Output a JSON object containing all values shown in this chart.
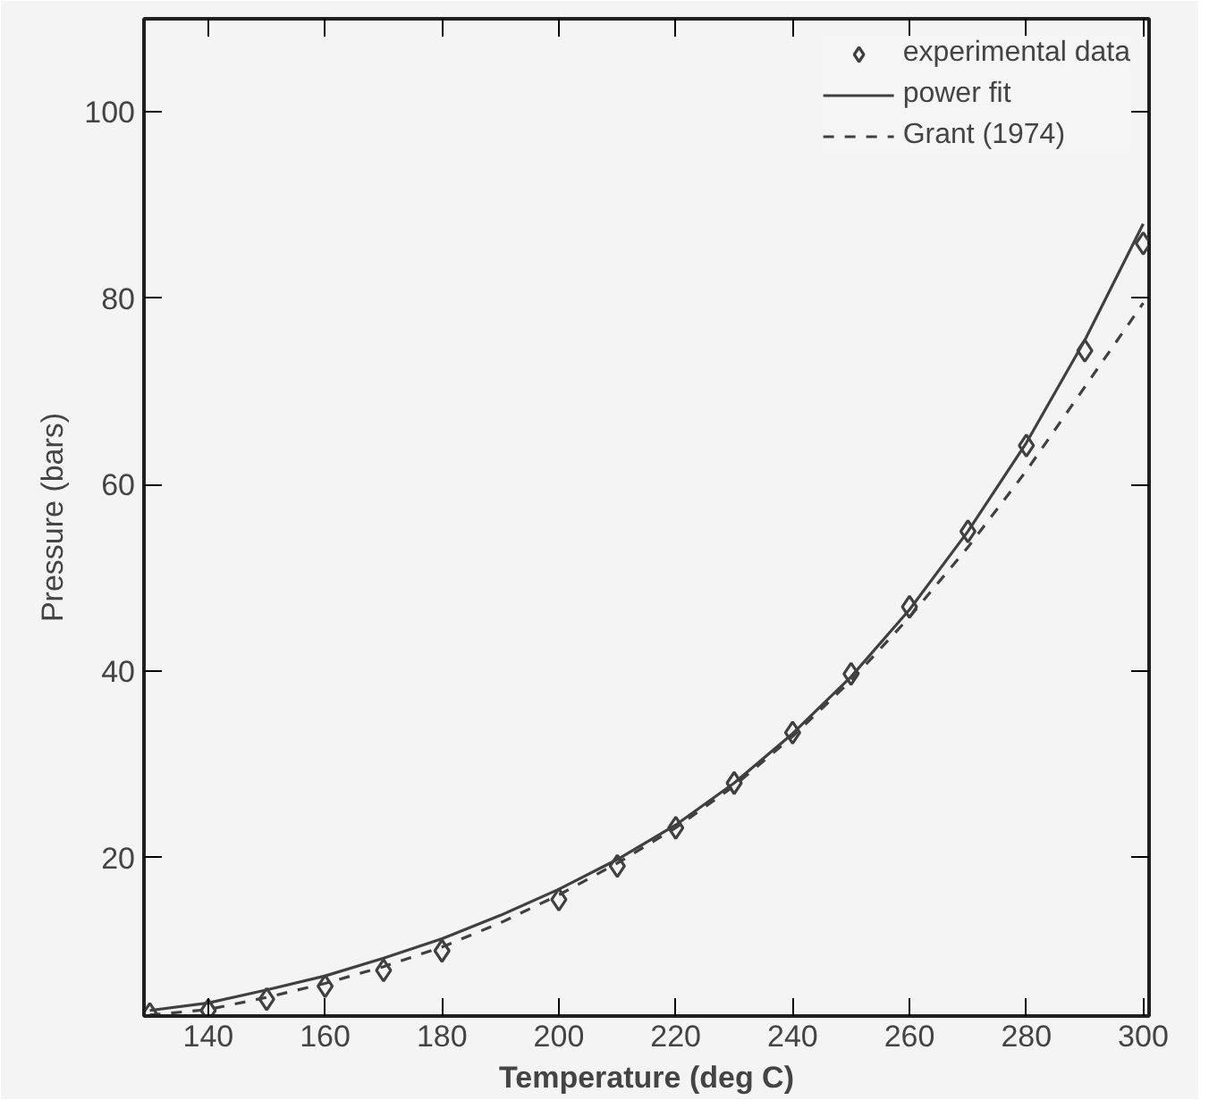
{
  "chart_data": {
    "type": "line",
    "xlabel": "Temperature (deg C)",
    "ylabel": "Pressure (bars)",
    "xlim": [
      129,
      301
    ],
    "ylim": [
      3,
      110
    ],
    "xticks": [
      140,
      160,
      180,
      200,
      220,
      240,
      260,
      280,
      300
    ],
    "yticks": [
      20,
      40,
      60,
      80,
      100
    ],
    "grid": false,
    "legend": "top right",
    "series": [
      {
        "name": "experimental data",
        "type": "scatter",
        "marker": "diamond",
        "color": "#404040",
        "x": [
          130,
          140,
          150,
          160,
          170,
          180,
          200,
          210,
          220,
          230,
          240,
          250,
          260,
          270,
          280,
          290,
          300
        ],
        "values": [
          3.2,
          3.6,
          4.8,
          6.2,
          7.9,
          10.0,
          15.5,
          19.1,
          23.2,
          28.0,
          33.4,
          39.7,
          46.9,
          55.0,
          64.2,
          74.4,
          85.9
        ]
      },
      {
        "name": "power fit",
        "line_style": "solid",
        "color": "#404040",
        "x": [
          130,
          140,
          150,
          160,
          170,
          180,
          190,
          200,
          210,
          220,
          230,
          240,
          250,
          260,
          270,
          280,
          290,
          300
        ],
        "values": [
          3.6,
          4.4,
          5.8,
          7.3,
          9.2,
          11.3,
          13.8,
          16.6,
          19.8,
          23.5,
          28.0,
          33.3,
          39.4,
          46.6,
          55.0,
          64.5,
          75.5,
          88.0
        ]
      },
      {
        "name": "Grant (1974)",
        "line_style": "dashed",
        "color": "#404040",
        "x": [
          130,
          140,
          150,
          160,
          170,
          180,
          190,
          200,
          210,
          220,
          230,
          240,
          250,
          260,
          270,
          280,
          290,
          300
        ],
        "values": [
          3.1,
          3.7,
          5.0,
          6.5,
          8.3,
          10.4,
          13.0,
          16.0,
          19.4,
          23.2,
          27.7,
          33.0,
          39.0,
          45.8,
          53.3,
          61.5,
          70.5,
          79.5
        ]
      }
    ]
  }
}
